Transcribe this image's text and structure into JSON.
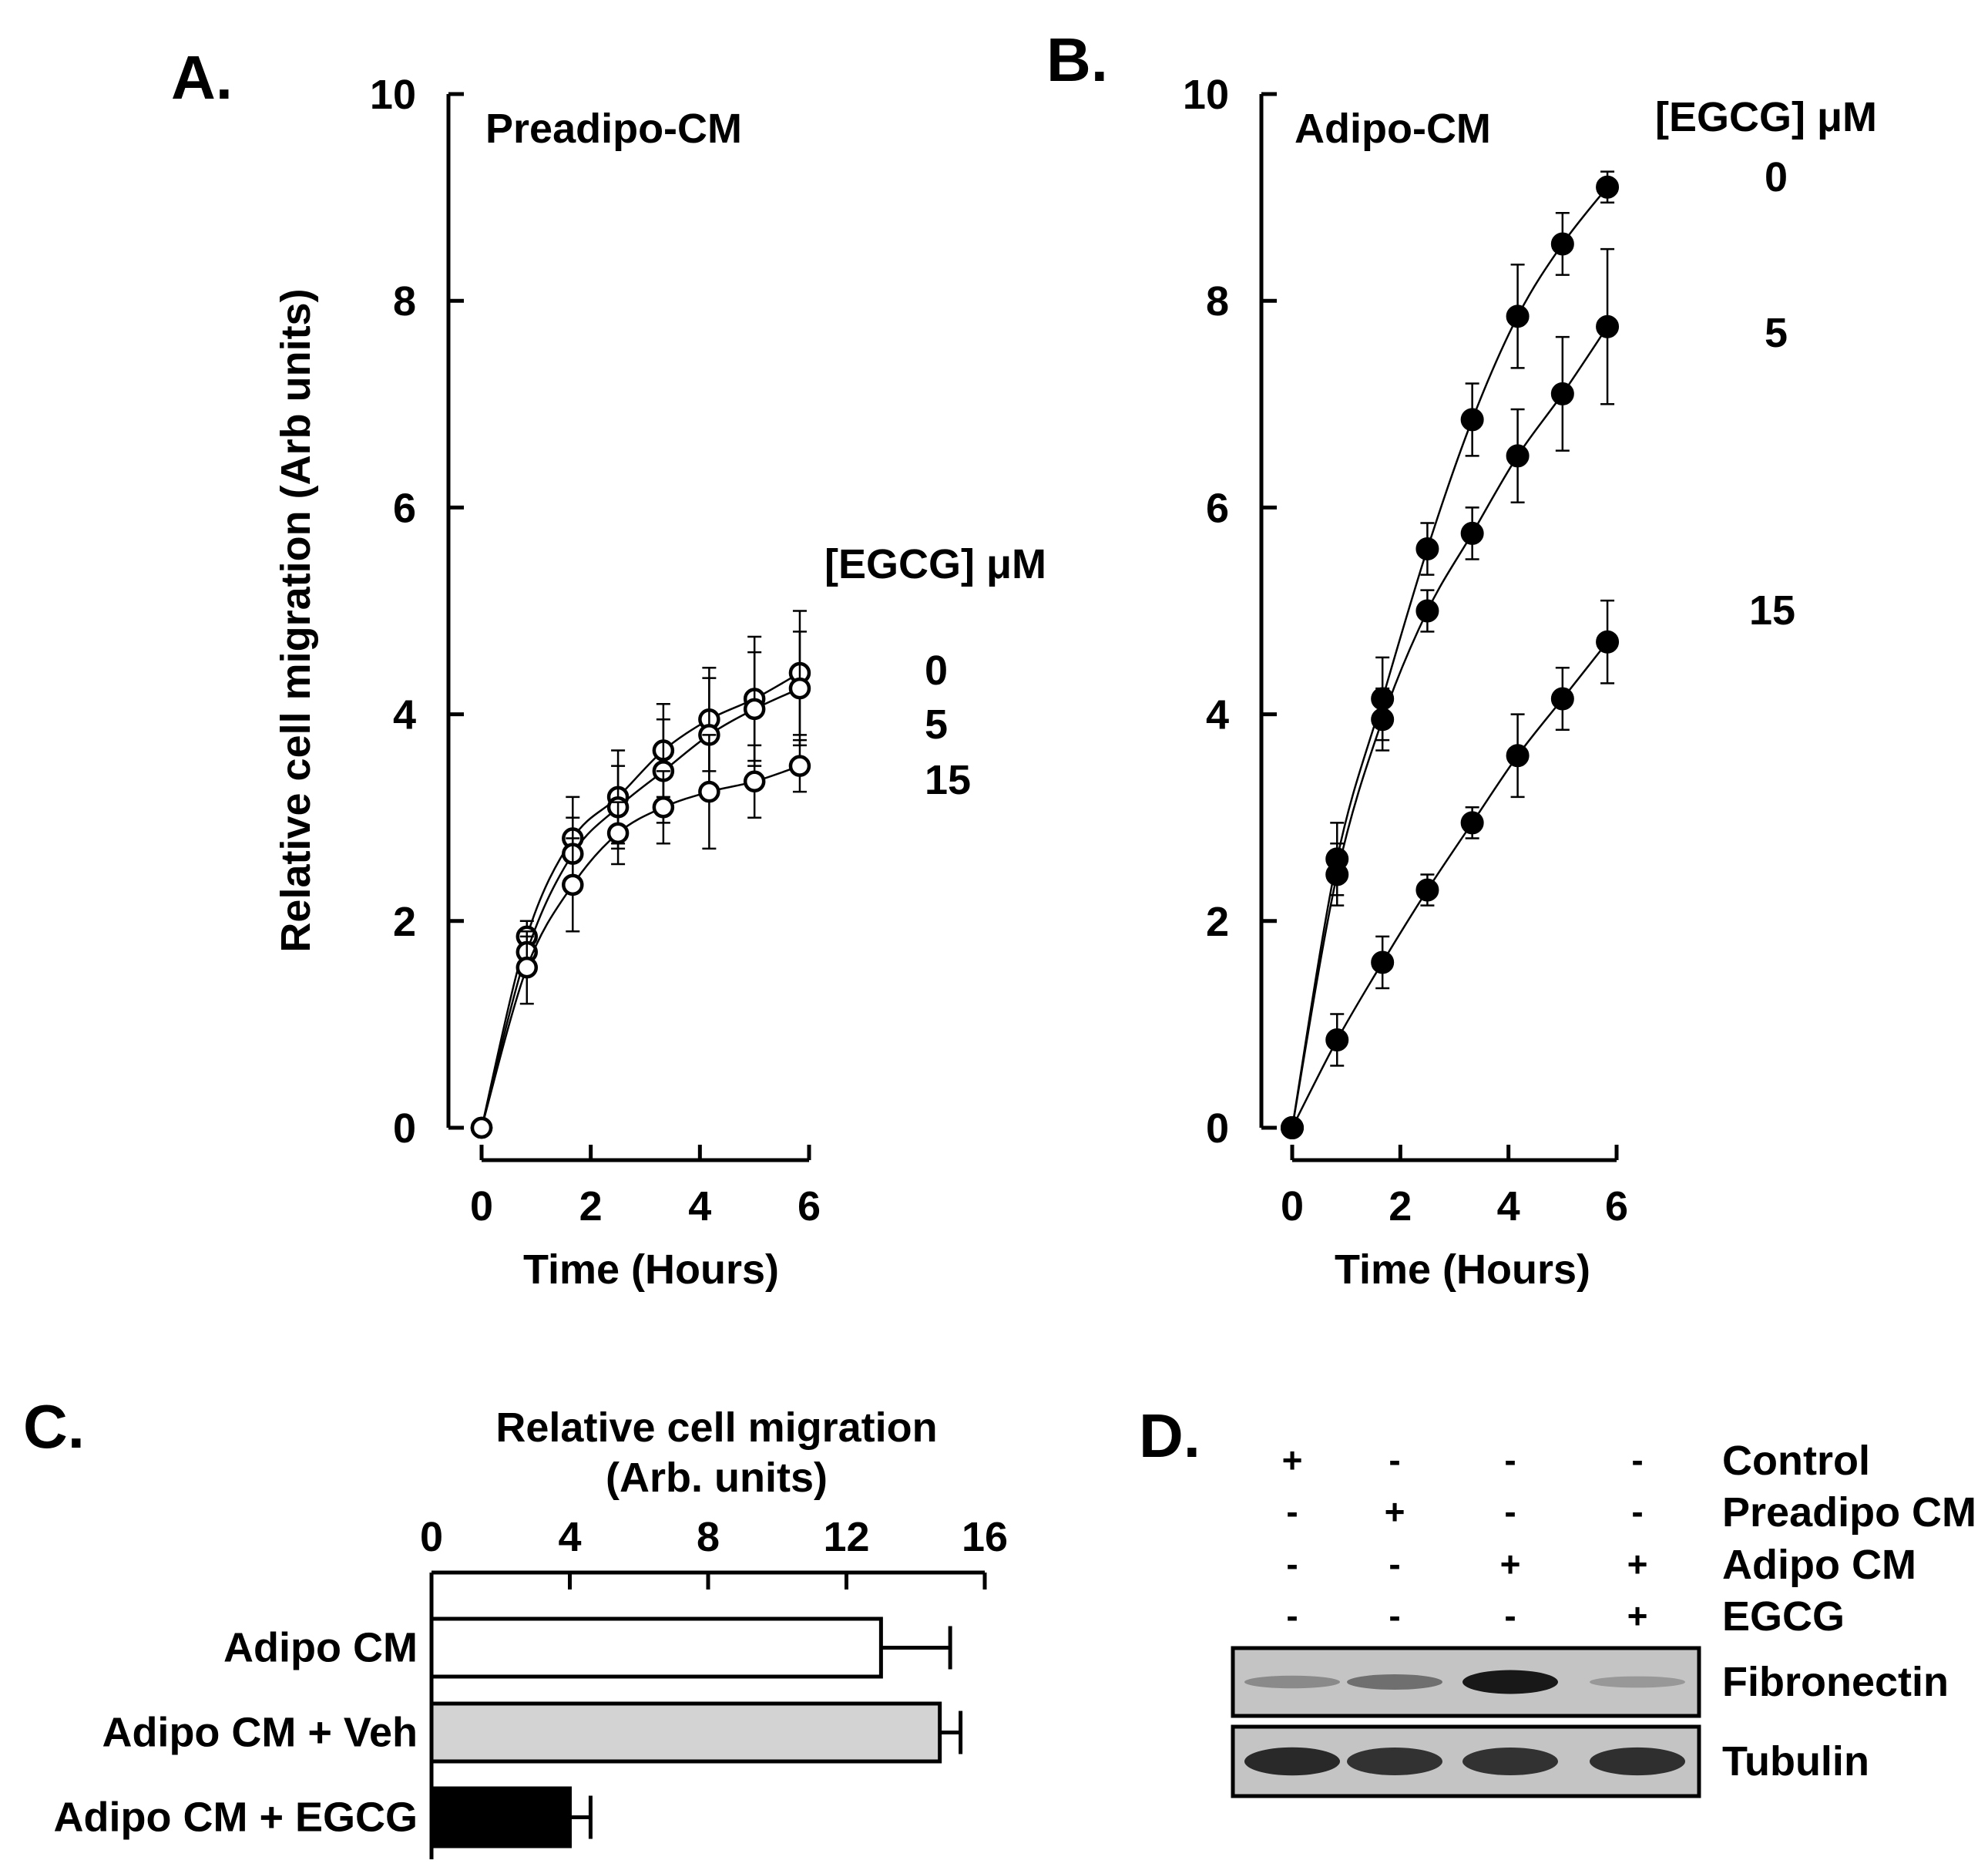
{
  "chart_data": [
    {
      "panel": "A.",
      "type": "line",
      "subtitle": "Preadipo-CM",
      "xlabel": "Time (Hours)",
      "ylabel": "Relative cell migration (Arb units)",
      "xlim": [
        0,
        6
      ],
      "ylim": [
        0,
        10
      ],
      "xticks": [
        "0",
        "2",
        "4",
        "6"
      ],
      "yticks": [
        "0",
        "2",
        "4",
        "6",
        "8",
        "10"
      ],
      "legend_title": "[EGCG] μM",
      "marker": "open-circle",
      "x": [
        0,
        0.83,
        1.67,
        2.5,
        3.33,
        4.17,
        5.0,
        5.83
      ],
      "series": [
        {
          "name": "0",
          "values": [
            0,
            1.85,
            2.8,
            3.2,
            3.65,
            3.95,
            4.15,
            4.4
          ],
          "errors": [
            0,
            0.15,
            0.4,
            0.45,
            0.45,
            0.5,
            0.6,
            0.6
          ]
        },
        {
          "name": "5",
          "values": [
            0,
            1.7,
            2.65,
            3.1,
            3.45,
            3.8,
            4.05,
            4.25
          ],
          "errors": [
            0,
            0.15,
            0.35,
            0.4,
            0.5,
            0.55,
            0.55,
            0.55
          ]
        },
        {
          "name": "15",
          "values": [
            0,
            1.55,
            2.35,
            2.85,
            3.1,
            3.25,
            3.35,
            3.5
          ],
          "errors": [
            0,
            0.35,
            0.45,
            0.3,
            0.35,
            0.55,
            0.35,
            0.25
          ]
        }
      ],
      "grid": false
    },
    {
      "panel": "B.",
      "type": "line",
      "subtitle": "Adipo-CM",
      "xlabel": "Time (Hours)",
      "ylabel": "",
      "xlim": [
        0,
        6
      ],
      "ylim": [
        0,
        10
      ],
      "xticks": [
        "0",
        "2",
        "4",
        "6"
      ],
      "yticks": [
        "0",
        "2",
        "4",
        "6",
        "8",
        "10"
      ],
      "legend_title": "[EGCG] μM",
      "marker": "filled-circle",
      "x": [
        0,
        0.83,
        1.67,
        2.5,
        3.33,
        4.17,
        5.0,
        5.83
      ],
      "series": [
        {
          "name": "0",
          "values": [
            0,
            2.6,
            4.15,
            5.6,
            6.85,
            7.85,
            8.55,
            9.1
          ],
          "errors": [
            0,
            0.35,
            0.4,
            0.25,
            0.35,
            0.5,
            0.3,
            0.15
          ]
        },
        {
          "name": "5",
          "values": [
            0,
            2.45,
            3.95,
            5.0,
            5.75,
            6.5,
            7.1,
            7.75
          ],
          "errors": [
            0,
            0.3,
            0.3,
            0.2,
            0.25,
            0.45,
            0.55,
            0.75
          ]
        },
        {
          "name": "15",
          "values": [
            0,
            0.85,
            1.6,
            2.3,
            2.95,
            3.6,
            4.15,
            4.7
          ],
          "errors": [
            0,
            0.25,
            0.25,
            0.15,
            0.15,
            0.4,
            0.3,
            0.4
          ]
        }
      ],
      "grid": false
    },
    {
      "panel": "C.",
      "type": "bar",
      "orientation": "horizontal",
      "xlabel": "Relative cell migration",
      "xlabel2": "(Arb. units)",
      "xlim": [
        0,
        16
      ],
      "xticks": [
        "0",
        "4",
        "8",
        "12",
        "16"
      ],
      "categories": [
        "Adipo CM",
        "Adipo CM + Veh",
        "Adipo CM + EGCG"
      ],
      "values": [
        13.0,
        14.7,
        4.0
      ],
      "errors": [
        2.0,
        0.6,
        0.6
      ],
      "colors": [
        "#ffffff",
        "#d3d3d3",
        "#000000"
      ],
      "grid": false
    },
    {
      "panel": "D.",
      "type": "table",
      "conditions": [
        "Control",
        "Preadipo CM",
        "Adipo CM",
        "EGCG"
      ],
      "signs": [
        [
          "+",
          "-",
          "-",
          "-"
        ],
        [
          "-",
          "+",
          "-",
          "-"
        ],
        [
          "-",
          "-",
          "+",
          "+"
        ],
        [
          "-",
          "-",
          "-",
          "+"
        ]
      ],
      "blots": [
        {
          "name": "Fibronectin",
          "intensity": [
            0.3,
            0.45,
            0.95,
            0.22
          ]
        },
        {
          "name": "Tubulin",
          "intensity": [
            0.85,
            0.8,
            0.8,
            0.82
          ]
        }
      ]
    }
  ]
}
